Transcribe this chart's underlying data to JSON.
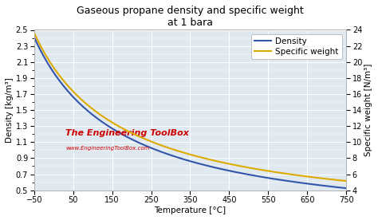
{
  "title_line1": "Gaseous propane density and specific weight",
  "title_line2": "at 1 bara",
  "xlabel": "Temperature [°C]",
  "ylabel_left": "Density [kg/m³]",
  "ylabel_right": "Specific weight [N/m³]",
  "x_min": -50,
  "x_max": 750,
  "y_left_min": 0.5,
  "y_left_max": 2.5,
  "y_right_min": 4,
  "y_right_max": 24,
  "x_ticks": [
    -50,
    50,
    150,
    250,
    350,
    450,
    550,
    650,
    750
  ],
  "y_left_ticks": [
    0.5,
    0.7,
    0.9,
    1.1,
    1.3,
    1.5,
    1.7,
    1.9,
    2.1,
    2.3,
    2.5
  ],
  "y_right_ticks": [
    4,
    6,
    8,
    10,
    12,
    14,
    16,
    18,
    20,
    22,
    24
  ],
  "density_color": "#3355aa",
  "specific_weight_color": "#ddaa00",
  "background_color": "#e0e8f0",
  "grid_color": "#ffffff",
  "legend_density": "Density",
  "legend_specific_weight": "Specific weight",
  "watermark_text": "The Engineering ToolBox",
  "watermark_url": "www.EngineeringToolBox.com",
  "watermark_color": "#cc0000",
  "title_fontsize": 9,
  "axis_label_fontsize": 7.5,
  "tick_fontsize": 7,
  "legend_fontsize": 7.5
}
